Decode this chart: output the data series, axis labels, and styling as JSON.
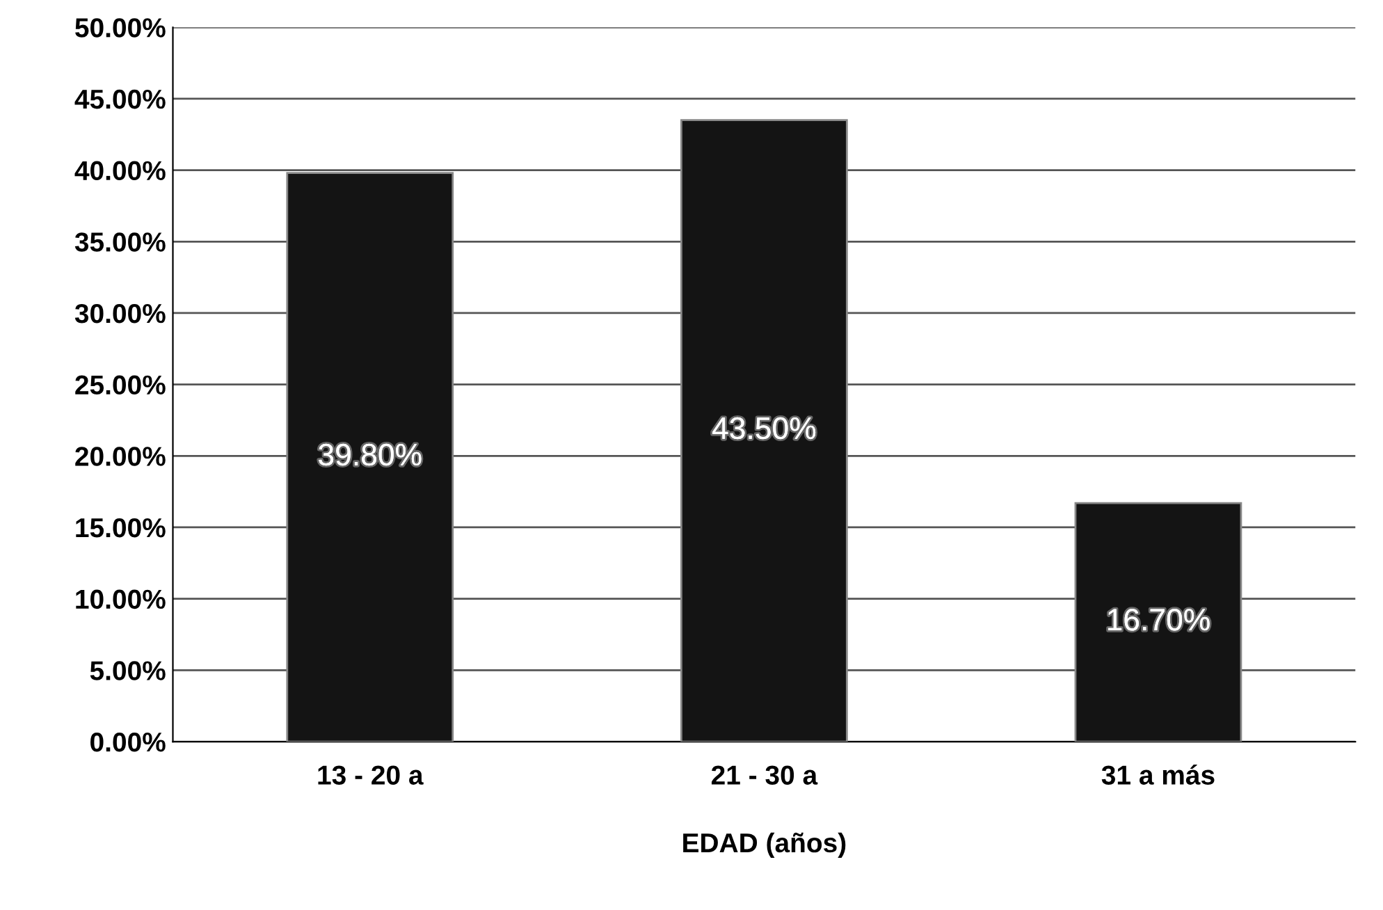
{
  "chart_data": {
    "type": "bar",
    "xlabel": "EDAD (años)",
    "categories": [
      "13 - 20 a",
      "21 - 30 a",
      "31 a más"
    ],
    "values": [
      39.8,
      43.5,
      16.7
    ],
    "value_labels": [
      "39.80%",
      "43.50%",
      "16.70%"
    ],
    "color": "#141414",
    "ylim": [
      0,
      50
    ],
    "yticks": [
      {
        "value": 0,
        "label": "0.00%"
      },
      {
        "value": 5,
        "label": "5.00%"
      },
      {
        "value": 10,
        "label": "10.00%"
      },
      {
        "value": 15,
        "label": "15.00%"
      },
      {
        "value": 20,
        "label": "20.00%"
      },
      {
        "value": 25,
        "label": "25.00%"
      },
      {
        "value": 30,
        "label": "30.00%"
      },
      {
        "value": 35,
        "label": "35.00%"
      },
      {
        "value": 40,
        "label": "40.00%"
      },
      {
        "value": 45,
        "label": "45.00%"
      },
      {
        "value": 50,
        "label": "50.00%"
      }
    ],
    "grid": "y"
  }
}
